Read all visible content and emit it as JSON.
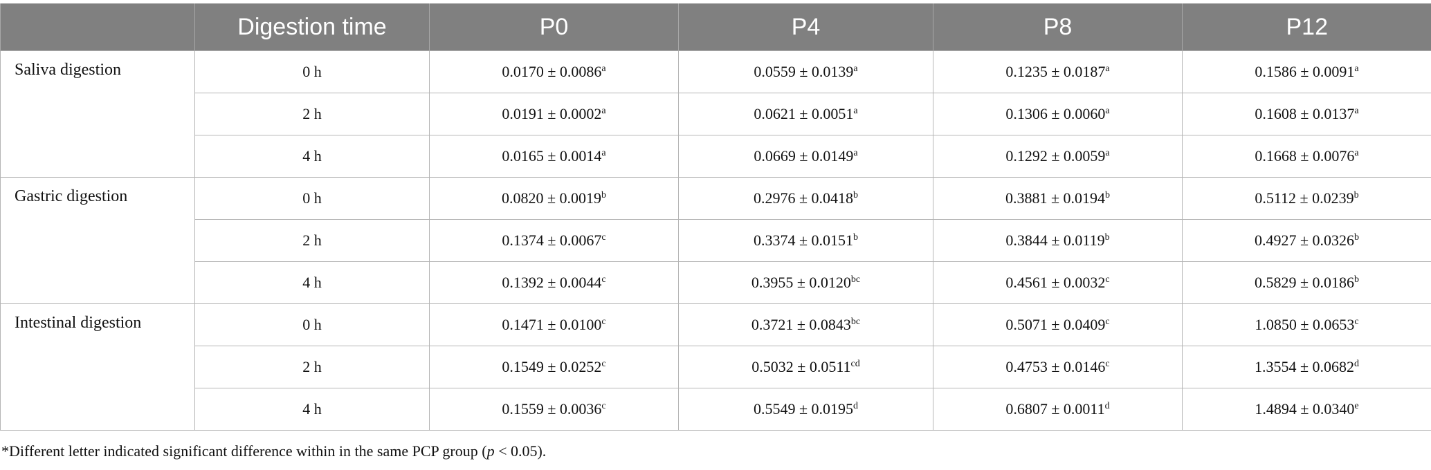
{
  "table": {
    "header": [
      "Digestion time",
      "P0",
      "P4",
      "P8",
      "P12"
    ],
    "groups": [
      {
        "name": "Saliva digestion",
        "rows": [
          {
            "time": "0 h",
            "cells": [
              {
                "value": "0.0170 ± 0.0086",
                "sup": "a"
              },
              {
                "value": "0.0559 ± 0.0139",
                "sup": "a"
              },
              {
                "value": "0.1235 ± 0.0187",
                "sup": "a"
              },
              {
                "value": "0.1586 ± 0.0091",
                "sup": "a"
              }
            ]
          },
          {
            "time": "2 h",
            "cells": [
              {
                "value": "0.0191 ± 0.0002",
                "sup": "a"
              },
              {
                "value": "0.0621 ± 0.0051",
                "sup": "a"
              },
              {
                "value": "0.1306 ± 0.0060",
                "sup": "a"
              },
              {
                "value": "0.1608 ± 0.0137",
                "sup": "a"
              }
            ]
          },
          {
            "time": "4 h",
            "cells": [
              {
                "value": "0.0165 ± 0.0014",
                "sup": "a"
              },
              {
                "value": "0.0669 ± 0.0149",
                "sup": "a"
              },
              {
                "value": "0.1292 ± 0.0059",
                "sup": "a"
              },
              {
                "value": "0.1668 ± 0.0076",
                "sup": "a"
              }
            ]
          }
        ]
      },
      {
        "name": "Gastric digestion",
        "rows": [
          {
            "time": "0 h",
            "cells": [
              {
                "value": "0.0820 ± 0.0019",
                "sup": "b"
              },
              {
                "value": "0.2976 ± 0.0418",
                "sup": "b"
              },
              {
                "value": "0.3881 ± 0.0194",
                "sup": "b"
              },
              {
                "value": "0.5112 ± 0.0239",
                "sup": "b"
              }
            ]
          },
          {
            "time": "2 h",
            "cells": [
              {
                "value": "0.1374 ± 0.0067",
                "sup": "c"
              },
              {
                "value": "0.3374 ± 0.0151",
                "sup": "b"
              },
              {
                "value": "0.3844 ± 0.0119",
                "sup": "b"
              },
              {
                "value": "0.4927 ± 0.0326",
                "sup": "b"
              }
            ]
          },
          {
            "time": "4 h",
            "cells": [
              {
                "value": "0.1392 ± 0.0044",
                "sup": "c"
              },
              {
                "value": "0.3955 ± 0.0120",
                "sup": "bc"
              },
              {
                "value": "0.4561 ± 0.0032",
                "sup": "c"
              },
              {
                "value": "0.5829 ± 0.0186",
                "sup": "b"
              }
            ]
          }
        ]
      },
      {
        "name": "Intestinal digestion",
        "rows": [
          {
            "time": "0 h",
            "cells": [
              {
                "value": "0.1471 ± 0.0100",
                "sup": "c"
              },
              {
                "value": "0.3721 ± 0.0843",
                "sup": "bc"
              },
              {
                "value": "0.5071 ± 0.0409",
                "sup": "c"
              },
              {
                "value": "1.0850 ± 0.0653",
                "sup": "c"
              }
            ]
          },
          {
            "time": "2 h",
            "cells": [
              {
                "value": "0.1549 ± 0.0252",
                "sup": "c"
              },
              {
                "value": "0.5032 ± 0.0511",
                "sup": "cd"
              },
              {
                "value": "0.4753 ± 0.0146",
                "sup": "c"
              },
              {
                "value": "1.3554 ± 0.0682",
                "sup": "d"
              }
            ]
          },
          {
            "time": "4 h",
            "cells": [
              {
                "value": "0.1559 ± 0.0036",
                "sup": "c"
              },
              {
                "value": "0.5549 ± 0.0195",
                "sup": "d"
              },
              {
                "value": "0.6807 ± 0.0011",
                "sup": "d"
              },
              {
                "value": "1.4894 ± 0.0340",
                "sup": "e"
              }
            ]
          }
        ]
      }
    ]
  },
  "footnote": {
    "before": "*Different letter indicated significant difference within in the same PCP group (",
    "italic": "p",
    "after": " < 0.05)."
  }
}
